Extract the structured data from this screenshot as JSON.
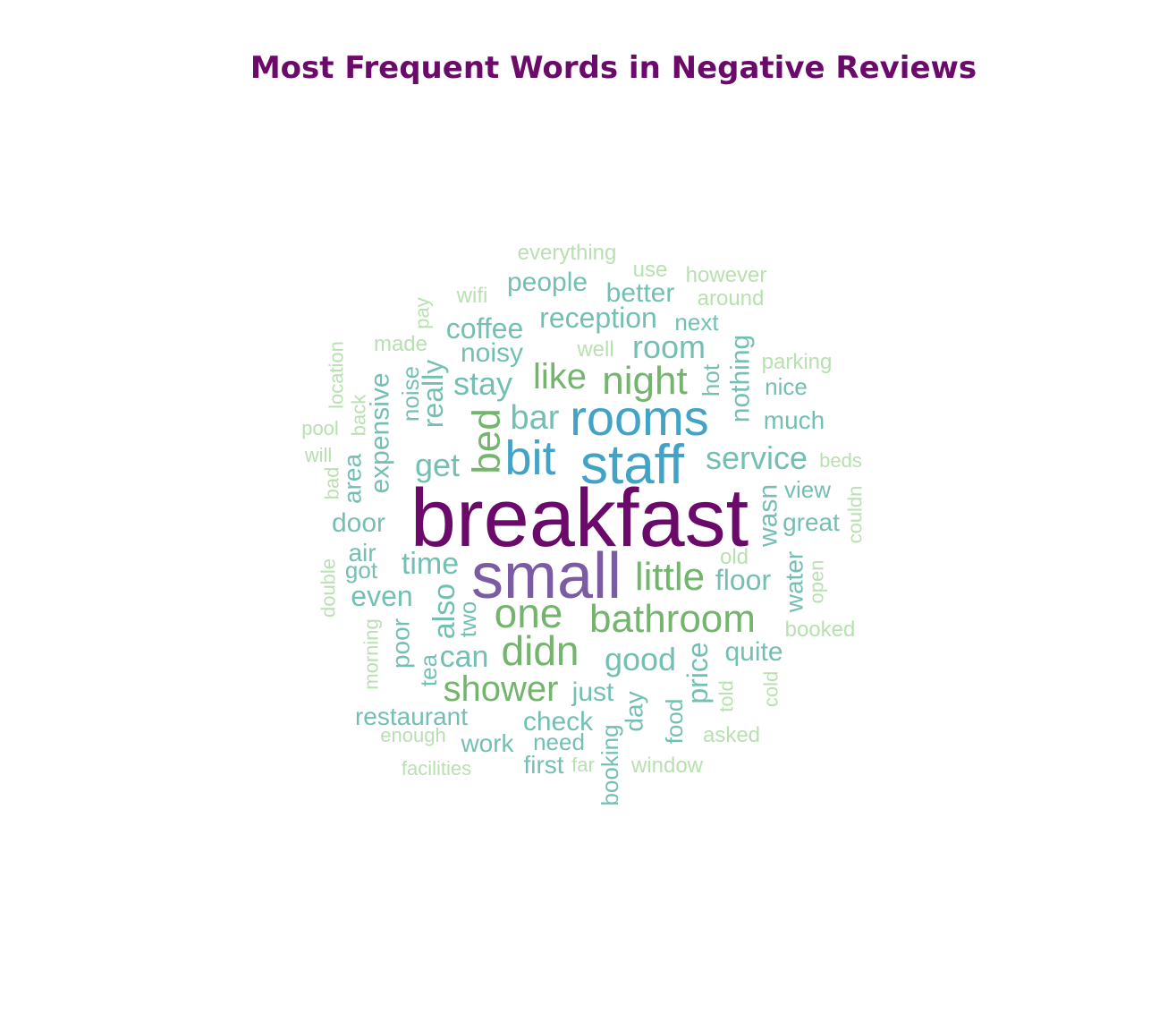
{
  "chart_data": {
    "type": "wordcloud",
    "title": "Most Frequent Words in Negative Reviews",
    "words": [
      {
        "text": "breakfast",
        "color": "#6b0a6b"
      },
      {
        "text": "small",
        "color": "#7b5ba4"
      },
      {
        "text": "staff",
        "color": "#43a3c6"
      },
      {
        "text": "rooms",
        "color": "#43a3c6"
      },
      {
        "text": "bit",
        "color": "#43a3c6"
      },
      {
        "text": "bathroom",
        "color": "#74b56e"
      },
      {
        "text": "didn",
        "color": "#74b56e"
      },
      {
        "text": "one",
        "color": "#74b56e"
      },
      {
        "text": "night",
        "color": "#74b56e"
      },
      {
        "text": "bed",
        "color": "#74b56e"
      },
      {
        "text": "little",
        "color": "#74b56e"
      },
      {
        "text": "shower",
        "color": "#74b56e"
      },
      {
        "text": "like",
        "color": "#74b56e"
      },
      {
        "text": "room",
        "color": "#74bfb3"
      },
      {
        "text": "bar",
        "color": "#74bfb3"
      },
      {
        "text": "service",
        "color": "#74bfb3"
      },
      {
        "text": "get",
        "color": "#74bfb3"
      },
      {
        "text": "stay",
        "color": "#74bfb3"
      },
      {
        "text": "good",
        "color": "#74bfb3"
      },
      {
        "text": "time",
        "color": "#74bfb3"
      },
      {
        "text": "reception",
        "color": "#74bfb3"
      },
      {
        "text": "coffee",
        "color": "#74bfb3"
      },
      {
        "text": "also",
        "color": "#74bfb3"
      },
      {
        "text": "can",
        "color": "#74bfb3"
      },
      {
        "text": "really",
        "color": "#74bfb3"
      },
      {
        "text": "nothing",
        "color": "#74bfb3"
      },
      {
        "text": "expensive",
        "color": "#74bfb3"
      },
      {
        "text": "wasn",
        "color": "#74bfb3"
      },
      {
        "text": "floor",
        "color": "#74bfb3"
      },
      {
        "text": "even",
        "color": "#74bfb3"
      },
      {
        "text": "door",
        "color": "#74bfb3"
      },
      {
        "text": "people",
        "color": "#74bfb3"
      },
      {
        "text": "better",
        "color": "#74bfb3"
      },
      {
        "text": "noisy",
        "color": "#74bfb3"
      },
      {
        "text": "just",
        "color": "#74bfb3"
      },
      {
        "text": "check",
        "color": "#74bfb3"
      },
      {
        "text": "price",
        "color": "#74bfb3"
      },
      {
        "text": "quite",
        "color": "#74bfb3"
      },
      {
        "text": "much",
        "color": "#74bfb3"
      },
      {
        "text": "water",
        "color": "#74bfb3"
      },
      {
        "text": "area",
        "color": "#74bfb3"
      },
      {
        "text": "restaurant",
        "color": "#74bfb3"
      },
      {
        "text": "work",
        "color": "#74bfb3"
      },
      {
        "text": "poor",
        "color": "#74bfb3"
      },
      {
        "text": "day",
        "color": "#74bfb3"
      },
      {
        "text": "great",
        "color": "#74bfb3"
      },
      {
        "text": "air",
        "color": "#74bfb3"
      },
      {
        "text": "first",
        "color": "#74bfb3"
      },
      {
        "text": "noise",
        "color": "#74bfb3"
      },
      {
        "text": "two",
        "color": "#74bfb3"
      },
      {
        "text": "hot",
        "color": "#74bfb3"
      },
      {
        "text": "view",
        "color": "#74bfb3"
      },
      {
        "text": "nice",
        "color": "#74bfb3"
      },
      {
        "text": "next",
        "color": "#74bfb3"
      },
      {
        "text": "got",
        "color": "#74bfb3"
      },
      {
        "text": "need",
        "color": "#74bfb3"
      },
      {
        "text": "food",
        "color": "#74bfb3"
      },
      {
        "text": "tea",
        "color": "#74bfb3"
      },
      {
        "text": "booking",
        "color": "#74bfb3"
      },
      {
        "text": "everything",
        "color": "#b8e0b1"
      },
      {
        "text": "use",
        "color": "#b8e0b1"
      },
      {
        "text": "however",
        "color": "#b8e0b1"
      },
      {
        "text": "wifi",
        "color": "#b8e0b1"
      },
      {
        "text": "around",
        "color": "#b8e0b1"
      },
      {
        "text": "pay",
        "color": "#b8e0b1"
      },
      {
        "text": "made",
        "color": "#b8e0b1"
      },
      {
        "text": "well",
        "color": "#b8e0b1"
      },
      {
        "text": "location",
        "color": "#b8e0b1"
      },
      {
        "text": "parking",
        "color": "#b8e0b1"
      },
      {
        "text": "back",
        "color": "#b8e0b1"
      },
      {
        "text": "pool",
        "color": "#b8e0b1"
      },
      {
        "text": "will",
        "color": "#b8e0b1"
      },
      {
        "text": "beds",
        "color": "#b8e0b1"
      },
      {
        "text": "bad",
        "color": "#b8e0b1"
      },
      {
        "text": "couldn",
        "color": "#b8e0b1"
      },
      {
        "text": "old",
        "color": "#b8e0b1"
      },
      {
        "text": "double",
        "color": "#b8e0b1"
      },
      {
        "text": "open",
        "color": "#b8e0b1"
      },
      {
        "text": "booked",
        "color": "#b8e0b1"
      },
      {
        "text": "morning",
        "color": "#b8e0b1"
      },
      {
        "text": "cold",
        "color": "#b8e0b1"
      },
      {
        "text": "told",
        "color": "#b8e0b1"
      },
      {
        "text": "enough",
        "color": "#b8e0b1"
      },
      {
        "text": "asked",
        "color": "#b8e0b1"
      },
      {
        "text": "facilities",
        "color": "#b8e0b1"
      },
      {
        "text": "far",
        "color": "#b8e0b1"
      },
      {
        "text": "window",
        "color": "#b8e0b1"
      }
    ]
  }
}
